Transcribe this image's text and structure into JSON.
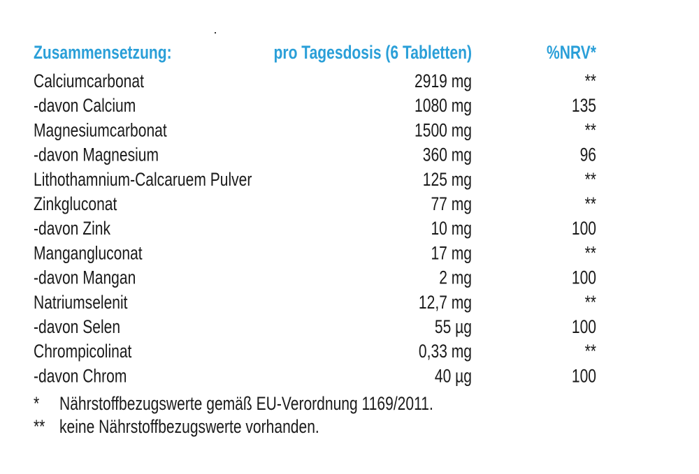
{
  "header": {
    "name": "Zusammensetzung:",
    "dose": "pro Tagesdosis (6 Tabletten)",
    "nrv": "%NRV*"
  },
  "table": {
    "rows": [
      [
        "Calciumcarbonat",
        "2919 mg",
        "**"
      ],
      [
        "-davon Calcium",
        "1080 mg",
        "135"
      ],
      [
        "Magnesiumcarbonat",
        "1500 mg",
        "**"
      ],
      [
        "-davon Magnesium",
        "360 mg",
        "96"
      ],
      [
        "Lithothamnium-Calcaruem Pulver",
        "125 mg",
        "**"
      ],
      [
        "Zinkgluconat",
        "77 mg",
        "**"
      ],
      [
        "-davon Zink",
        "10 mg",
        "100"
      ],
      [
        "Mangangluconat",
        "17 mg",
        "**"
      ],
      [
        "-davon Mangan",
        "2 mg",
        "100"
      ],
      [
        "Natriumselenit",
        "12,7 mg",
        "**"
      ],
      [
        "-davon Selen",
        "55 µg",
        "100"
      ],
      [
        "Chrompicolinat",
        "0,33 mg",
        "**"
      ],
      [
        "-davon Chrom",
        "40 µg",
        "100"
      ]
    ]
  },
  "footnotes": [
    {
      "marker": "*",
      "text": "Nährstoffbezugswerte gemäß EU-Verordnung 1169/2011."
    },
    {
      "marker": "**",
      "text": "keine Nährstoffbezugswerte vorhanden."
    }
  ]
}
